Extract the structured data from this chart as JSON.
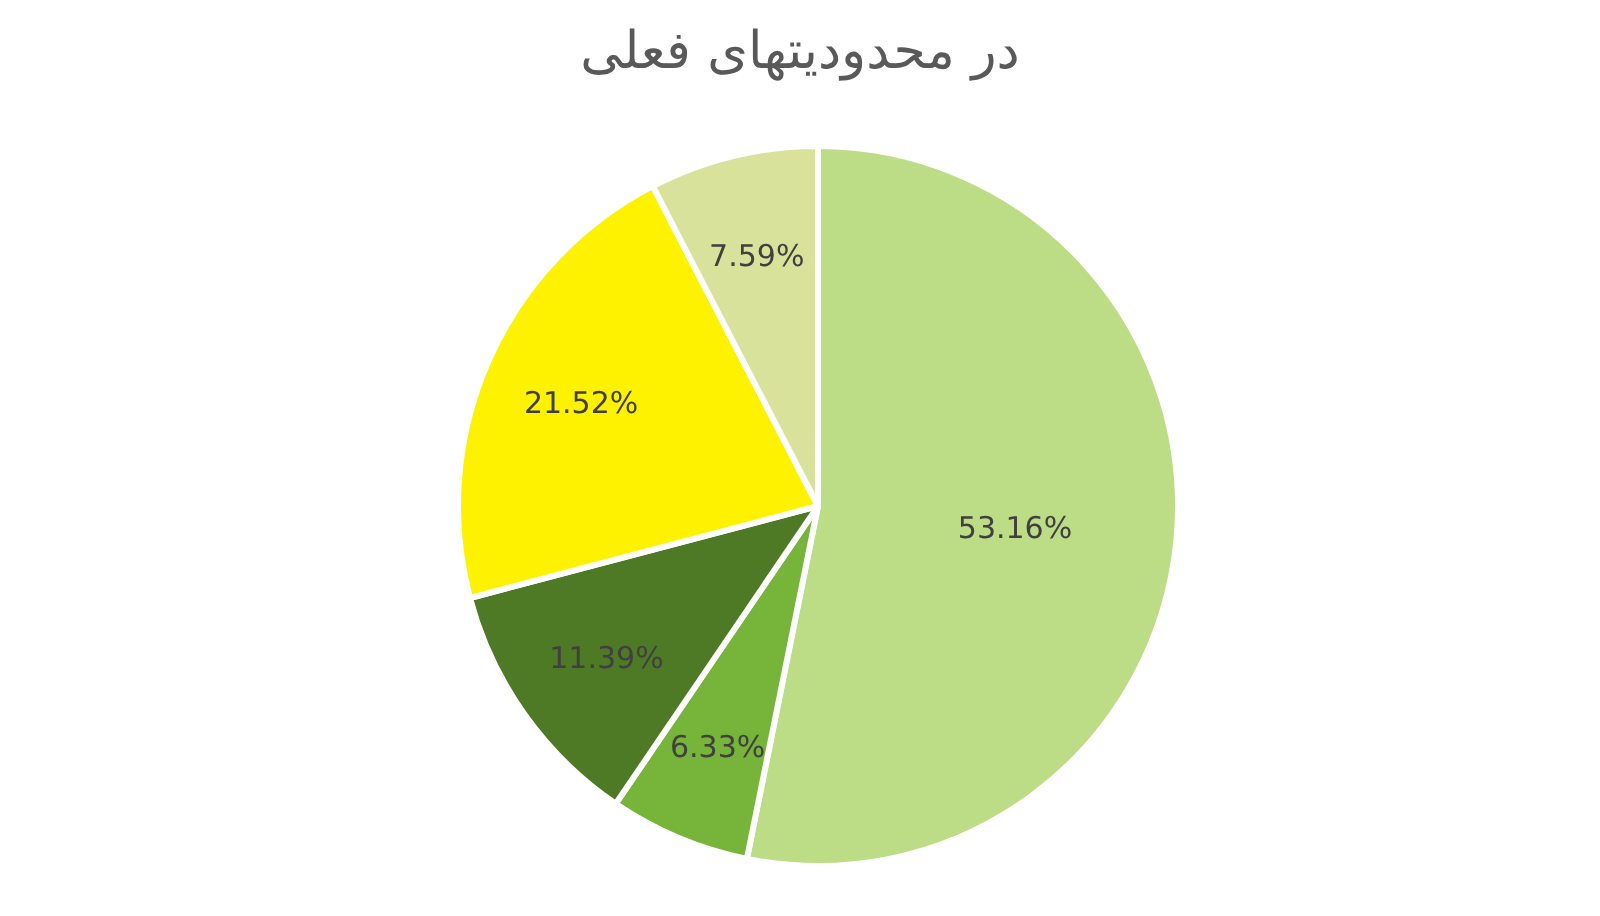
{
  "chart_data": {
    "type": "pie",
    "title": "در محدودیتهای فعلی",
    "categories": [
      null,
      null,
      null,
      null,
      null
    ],
    "values": [
      53.16,
      6.33,
      11.39,
      21.52,
      7.59
    ],
    "colors": [
      "#bddc86",
      "#76b43a",
      "#4e7a26",
      "#fff200",
      "#d9e29a"
    ],
    "value_labels": [
      "53.16%",
      "6.33%",
      "11.39%",
      "21.52%",
      "7.59%"
    ]
  }
}
